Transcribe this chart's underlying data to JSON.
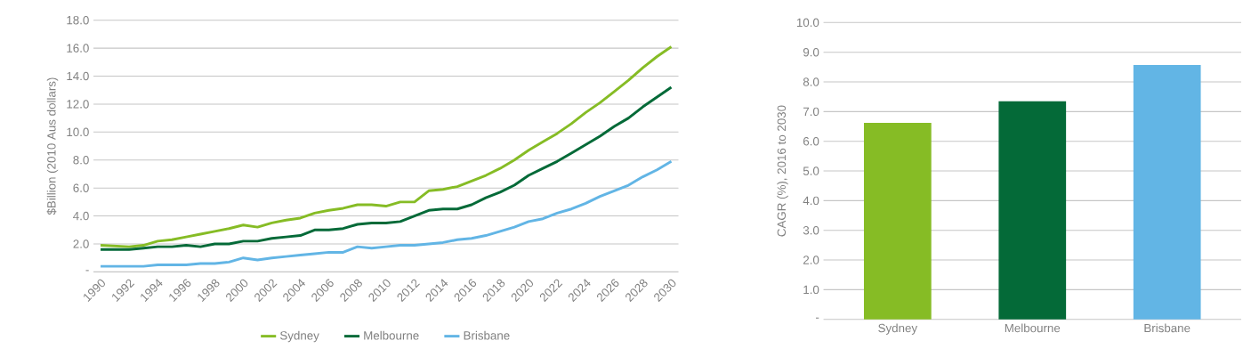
{
  "chart_data": [
    {
      "type": "line",
      "ylabel": "$Billion (2010 Aus dollars)",
      "x": [
        1990,
        1991,
        1992,
        1993,
        1994,
        1995,
        1996,
        1997,
        1998,
        1999,
        2000,
        2001,
        2002,
        2003,
        2004,
        2005,
        2006,
        2007,
        2008,
        2009,
        2010,
        2011,
        2012,
        2013,
        2014,
        2015,
        2016,
        2017,
        2018,
        2019,
        2020,
        2021,
        2022,
        2023,
        2024,
        2025,
        2026,
        2027,
        2028,
        2029,
        2030
      ],
      "series": [
        {
          "name": "Sydney",
          "color": "#86bc25",
          "values": [
            1.9,
            1.85,
            1.8,
            1.9,
            2.2,
            2.3,
            2.5,
            2.7,
            2.9,
            3.1,
            3.35,
            3.2,
            3.5,
            3.7,
            3.85,
            4.2,
            4.4,
            4.55,
            4.8,
            4.8,
            4.7,
            5.0,
            5.0,
            5.8,
            5.9,
            6.1,
            6.5,
            6.9,
            7.4,
            8.0,
            8.7,
            9.3,
            9.9,
            10.6,
            11.4,
            12.1,
            12.9,
            13.7,
            14.6,
            15.4,
            16.1
          ]
        },
        {
          "name": "Melbourne",
          "color": "#046a38",
          "values": [
            1.6,
            1.6,
            1.6,
            1.7,
            1.8,
            1.8,
            1.9,
            1.8,
            2.0,
            2.0,
            2.2,
            2.2,
            2.4,
            2.5,
            2.6,
            3.0,
            3.0,
            3.1,
            3.4,
            3.5,
            3.5,
            3.6,
            4.0,
            4.4,
            4.5,
            4.5,
            4.8,
            5.3,
            5.7,
            6.2,
            6.9,
            7.4,
            7.9,
            8.5,
            9.1,
            9.7,
            10.4,
            11.0,
            11.8,
            12.5,
            13.2
          ]
        },
        {
          "name": "Brisbane",
          "color": "#62b5e5",
          "values": [
            0.4,
            0.4,
            0.4,
            0.4,
            0.5,
            0.5,
            0.5,
            0.6,
            0.6,
            0.7,
            1.0,
            0.85,
            1.0,
            1.1,
            1.2,
            1.3,
            1.4,
            1.4,
            1.8,
            1.7,
            1.8,
            1.9,
            1.9,
            2.0,
            2.1,
            2.3,
            2.4,
            2.6,
            2.9,
            3.2,
            3.6,
            3.8,
            4.2,
            4.5,
            4.9,
            5.4,
            5.8,
            6.2,
            6.8,
            7.3,
            7.9
          ]
        }
      ],
      "xlim": [
        1989.5,
        2030.5
      ],
      "xticks": [
        1990,
        1992,
        1994,
        1996,
        1998,
        2000,
        2002,
        2004,
        2006,
        2008,
        2010,
        2012,
        2014,
        2016,
        2018,
        2020,
        2022,
        2024,
        2026,
        2028,
        2030
      ],
      "ylim": [
        0,
        18
      ],
      "yticks": [
        {
          "value": 0,
          "label": "-"
        },
        {
          "value": 2,
          "label": "2.0"
        },
        {
          "value": 4,
          "label": "4.0"
        },
        {
          "value": 6,
          "label": "6.0"
        },
        {
          "value": 8,
          "label": "8.0"
        },
        {
          "value": 10,
          "label": "10.0"
        },
        {
          "value": 12,
          "label": "12.0"
        },
        {
          "value": 14,
          "label": "14.0"
        },
        {
          "value": 16,
          "label": "16.0"
        },
        {
          "value": 18,
          "label": "18.0"
        }
      ],
      "grid": "y",
      "legend": "bottom",
      "marker": "none",
      "line_style": "solid"
    },
    {
      "type": "bar",
      "ylabel": "CAGR (%), 2016 to 2030",
      "categories": [
        "Sydney",
        "Melbourne",
        "Brisbane"
      ],
      "values": [
        6.62,
        7.35,
        8.57
      ],
      "colors": [
        "#86bc25",
        "#046a38",
        "#62b5e5"
      ],
      "ylim": [
        0,
        10
      ],
      "yticks": [
        {
          "value": 0,
          "label": "-"
        },
        {
          "value": 1,
          "label": "1.0"
        },
        {
          "value": 2,
          "label": "2.0"
        },
        {
          "value": 3,
          "label": "3.0"
        },
        {
          "value": 4,
          "label": "4.0"
        },
        {
          "value": 5,
          "label": "5.0"
        },
        {
          "value": 6,
          "label": "6.0"
        },
        {
          "value": 7,
          "label": "7.0"
        },
        {
          "value": 8,
          "label": "8.0"
        },
        {
          "value": 9,
          "label": "9.0"
        },
        {
          "value": 10,
          "label": "10.0"
        }
      ],
      "grid": "y"
    }
  ]
}
